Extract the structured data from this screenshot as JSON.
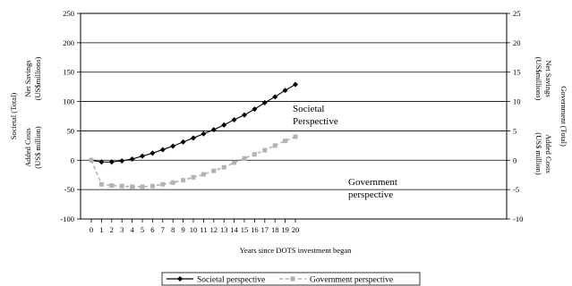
{
  "chart_data": {
    "type": "line",
    "title": "",
    "x": [
      0,
      1,
      2,
      3,
      4,
      5,
      6,
      7,
      8,
      9,
      10,
      11,
      12,
      13,
      14,
      15,
      16,
      17,
      18,
      19,
      20
    ],
    "xlabel": "Years since DOTS investment began",
    "xlim": [
      0,
      20
    ],
    "left_axis": {
      "label_lines": [
        "Societal (Total)",
        "Added Costs",
        "(US$ million)",
        "Net Savings",
        "(US$millions)"
      ],
      "ylim": [
        -100,
        250
      ],
      "ticks": [
        -100,
        -50,
        0,
        50,
        100,
        150,
        200,
        250
      ]
    },
    "right_axis": {
      "label_lines": [
        "Government (Total)",
        "Net Savings",
        "(US$millions)",
        "Added Costs",
        "(US$ million)"
      ],
      "ylim": [
        -10,
        25
      ],
      "ticks": [
        -10,
        -5,
        0,
        5,
        10,
        15,
        20,
        25
      ]
    },
    "grid": "horizontal",
    "series": [
      {
        "name": "Societal perspective",
        "axis": "left",
        "color": "#000000",
        "style": "solid",
        "marker": "diamond",
        "values": [
          0,
          -3,
          -3,
          -1,
          2,
          7,
          12,
          18,
          24,
          31,
          38,
          45,
          52,
          60,
          69,
          77,
          87,
          98,
          108,
          119,
          129
        ]
      },
      {
        "name": "Government perspective",
        "axis": "right",
        "color": "#b3b3b3",
        "style": "dashed",
        "marker": "square",
        "values": [
          0,
          -4.1,
          -4.3,
          -4.4,
          -4.5,
          -4.5,
          -4.4,
          -4.1,
          -3.8,
          -3.4,
          -2.9,
          -2.4,
          -1.8,
          -1.2,
          -0.4,
          0.3,
          1.0,
          1.7,
          2.5,
          3.3,
          4.0
        ]
      }
    ],
    "annotations": [
      {
        "lines": [
          "Societal",
          "Perspective"
        ]
      },
      {
        "lines": [
          "Government",
          "perspective"
        ]
      }
    ],
    "legend": {
      "placement": "bottom",
      "entries": [
        "Societal perspective",
        "Government perspective"
      ]
    }
  }
}
